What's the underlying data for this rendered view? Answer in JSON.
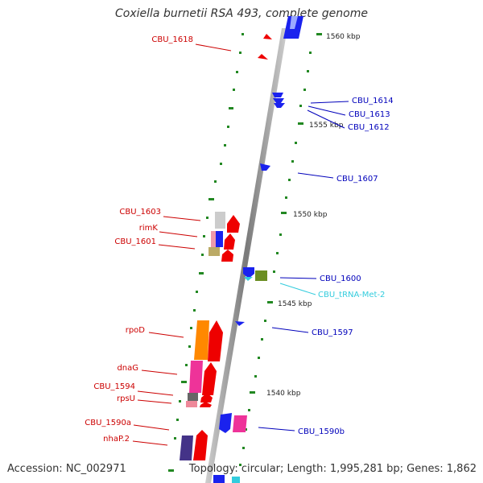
{
  "title": "Coxiella burnetii RSA 493, complete genome",
  "footer": {
    "accession": "Accession: NC_002971",
    "topology": "Topology: circular; Length: 1,995,281 bp; Genes: 1,862"
  },
  "colors": {
    "reverse_label": "#cc0000",
    "forward_label": "#0000bb",
    "trna_label": "#33ccdd",
    "backbone": "#9a9a9a",
    "tick": "#228822"
  },
  "scale_labels": [
    "1560 kbp",
    "1555 kbp",
    "1550 kbp",
    "1545 kbp",
    "1540 kbp"
  ],
  "genes_reverse": [
    "CBU_1618",
    "CBU_1603",
    "rimK",
    "CBU_1601",
    "rpoD",
    "dnaG",
    "CBU_1594",
    "rpsU",
    "CBU_1590a",
    "nhaP.2"
  ],
  "genes_forward": [
    "CBU_1614",
    "CBU_1613",
    "CBU_1612",
    "CBU_1607",
    "CBU_1600",
    "CBU_1597",
    "CBU_1590b"
  ],
  "genes_trna": [
    "CBU_tRNA-Met-2"
  ]
}
